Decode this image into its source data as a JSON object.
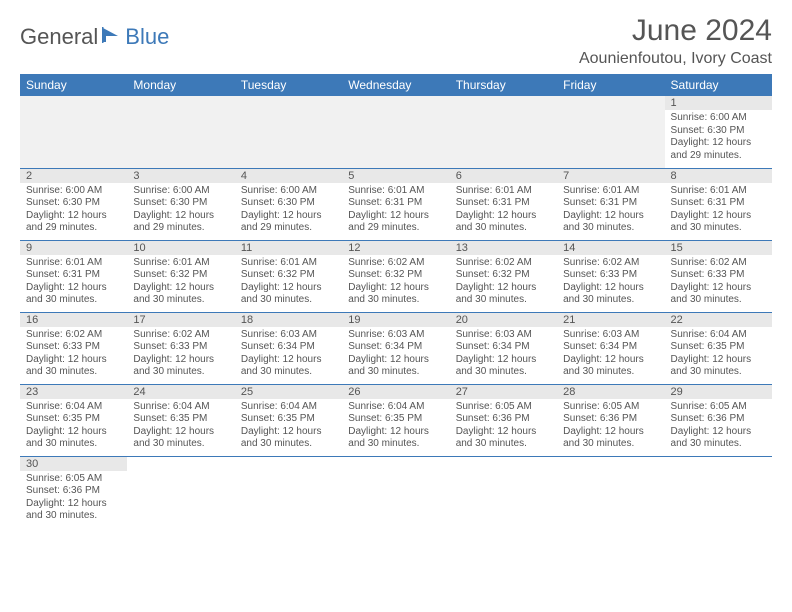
{
  "logo": {
    "general": "General",
    "blue": "Blue"
  },
  "header": {
    "month_title": "June 2024",
    "location": "Aounienfoutou, Ivory Coast"
  },
  "colors": {
    "header_bg": "#3d79b8",
    "header_text": "#ffffff",
    "daynum_bg": "#e8e8e8",
    "body_text": "#555555",
    "rule": "#3d79b8"
  },
  "weekdays": [
    "Sunday",
    "Monday",
    "Tuesday",
    "Wednesday",
    "Thursday",
    "Friday",
    "Saturday"
  ],
  "calendar": {
    "first_weekday_index": 6,
    "days": [
      {
        "n": 1,
        "sunrise": "6:00 AM",
        "sunset": "6:30 PM",
        "daylight": "12 hours and 29 minutes."
      },
      {
        "n": 2,
        "sunrise": "6:00 AM",
        "sunset": "6:30 PM",
        "daylight": "12 hours and 29 minutes."
      },
      {
        "n": 3,
        "sunrise": "6:00 AM",
        "sunset": "6:30 PM",
        "daylight": "12 hours and 29 minutes."
      },
      {
        "n": 4,
        "sunrise": "6:00 AM",
        "sunset": "6:30 PM",
        "daylight": "12 hours and 29 minutes."
      },
      {
        "n": 5,
        "sunrise": "6:01 AM",
        "sunset": "6:31 PM",
        "daylight": "12 hours and 29 minutes."
      },
      {
        "n": 6,
        "sunrise": "6:01 AM",
        "sunset": "6:31 PM",
        "daylight": "12 hours and 30 minutes."
      },
      {
        "n": 7,
        "sunrise": "6:01 AM",
        "sunset": "6:31 PM",
        "daylight": "12 hours and 30 minutes."
      },
      {
        "n": 8,
        "sunrise": "6:01 AM",
        "sunset": "6:31 PM",
        "daylight": "12 hours and 30 minutes."
      },
      {
        "n": 9,
        "sunrise": "6:01 AM",
        "sunset": "6:31 PM",
        "daylight": "12 hours and 30 minutes."
      },
      {
        "n": 10,
        "sunrise": "6:01 AM",
        "sunset": "6:32 PM",
        "daylight": "12 hours and 30 minutes."
      },
      {
        "n": 11,
        "sunrise": "6:01 AM",
        "sunset": "6:32 PM",
        "daylight": "12 hours and 30 minutes."
      },
      {
        "n": 12,
        "sunrise": "6:02 AM",
        "sunset": "6:32 PM",
        "daylight": "12 hours and 30 minutes."
      },
      {
        "n": 13,
        "sunrise": "6:02 AM",
        "sunset": "6:32 PM",
        "daylight": "12 hours and 30 minutes."
      },
      {
        "n": 14,
        "sunrise": "6:02 AM",
        "sunset": "6:33 PM",
        "daylight": "12 hours and 30 minutes."
      },
      {
        "n": 15,
        "sunrise": "6:02 AM",
        "sunset": "6:33 PM",
        "daylight": "12 hours and 30 minutes."
      },
      {
        "n": 16,
        "sunrise": "6:02 AM",
        "sunset": "6:33 PM",
        "daylight": "12 hours and 30 minutes."
      },
      {
        "n": 17,
        "sunrise": "6:02 AM",
        "sunset": "6:33 PM",
        "daylight": "12 hours and 30 minutes."
      },
      {
        "n": 18,
        "sunrise": "6:03 AM",
        "sunset": "6:34 PM",
        "daylight": "12 hours and 30 minutes."
      },
      {
        "n": 19,
        "sunrise": "6:03 AM",
        "sunset": "6:34 PM",
        "daylight": "12 hours and 30 minutes."
      },
      {
        "n": 20,
        "sunrise": "6:03 AM",
        "sunset": "6:34 PM",
        "daylight": "12 hours and 30 minutes."
      },
      {
        "n": 21,
        "sunrise": "6:03 AM",
        "sunset": "6:34 PM",
        "daylight": "12 hours and 30 minutes."
      },
      {
        "n": 22,
        "sunrise": "6:04 AM",
        "sunset": "6:35 PM",
        "daylight": "12 hours and 30 minutes."
      },
      {
        "n": 23,
        "sunrise": "6:04 AM",
        "sunset": "6:35 PM",
        "daylight": "12 hours and 30 minutes."
      },
      {
        "n": 24,
        "sunrise": "6:04 AM",
        "sunset": "6:35 PM",
        "daylight": "12 hours and 30 minutes."
      },
      {
        "n": 25,
        "sunrise": "6:04 AM",
        "sunset": "6:35 PM",
        "daylight": "12 hours and 30 minutes."
      },
      {
        "n": 26,
        "sunrise": "6:04 AM",
        "sunset": "6:35 PM",
        "daylight": "12 hours and 30 minutes."
      },
      {
        "n": 27,
        "sunrise": "6:05 AM",
        "sunset": "6:36 PM",
        "daylight": "12 hours and 30 minutes."
      },
      {
        "n": 28,
        "sunrise": "6:05 AM",
        "sunset": "6:36 PM",
        "daylight": "12 hours and 30 minutes."
      },
      {
        "n": 29,
        "sunrise": "6:05 AM",
        "sunset": "6:36 PM",
        "daylight": "12 hours and 30 minutes."
      },
      {
        "n": 30,
        "sunrise": "6:05 AM",
        "sunset": "6:36 PM",
        "daylight": "12 hours and 30 minutes."
      }
    ]
  },
  "labels": {
    "sunrise": "Sunrise: ",
    "sunset": "Sunset: ",
    "daylight": "Daylight: "
  }
}
